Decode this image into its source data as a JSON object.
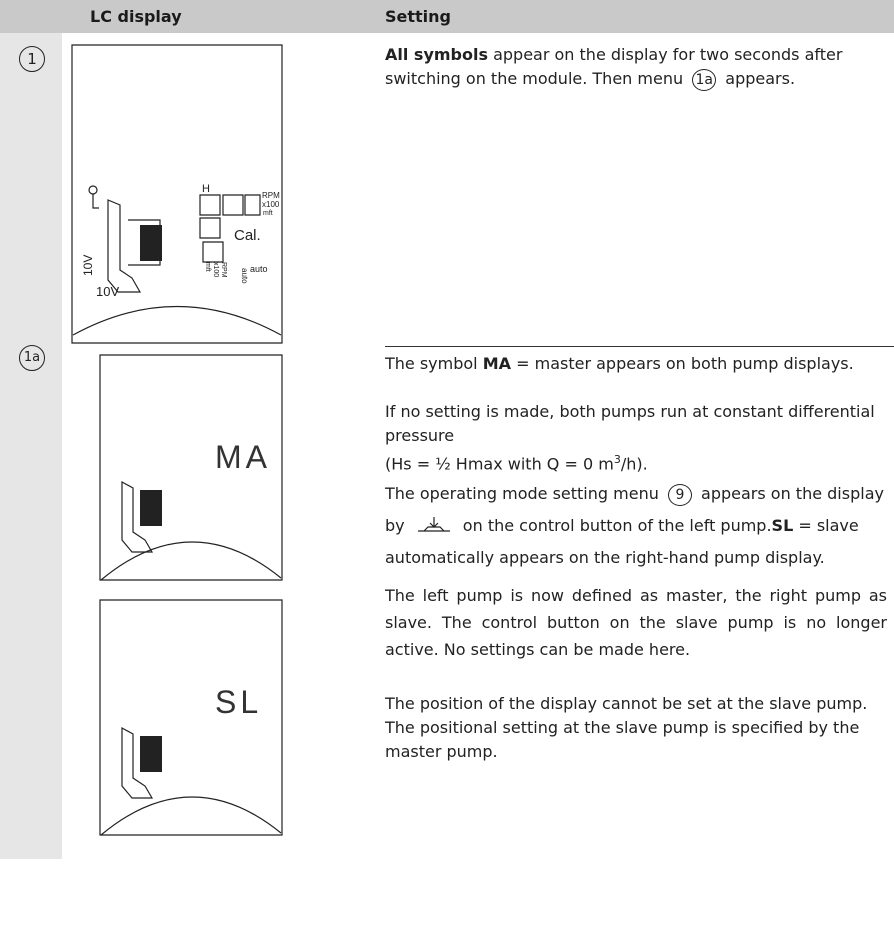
{
  "header": {
    "columns": [
      "LC display",
      "Setting"
    ]
  },
  "rows": [
    {
      "step": "1",
      "display_labels": [
        "H",
        "RPM",
        "x100",
        "mft",
        "Cal.",
        "auto",
        "10V",
        "RPM",
        "x100",
        "mft",
        "auto",
        "10V"
      ],
      "paragraphs": [
        [
          "All symbols",
          " appear on the display for two seconds after switching on the module. Then menu ",
          "1a",
          " appears."
        ]
      ]
    },
    {
      "step": "1a",
      "displays": [
        "MA",
        "SL"
      ],
      "paragraphs": [
        [
          "The symbol ",
          "MA",
          " = master appears on both pump displays."
        ],
        [
          "If no setting is made, both pumps run at constant differential pressure"
        ],
        [
          "(Hs = ½ Hmax with Q = 0 m",
          "3",
          "/h)."
        ],
        [
          "The operating mode setting menu ",
          "9",
          " appears on the display by ",
          " on the control button of the left pump.",
          "SL",
          " = slave automatically appears on the right-hand pump display."
        ],
        [
          "The left pump is now defined as master, the right pump as slave. The control button on the slave pump is no longer active. No settings can be made here."
        ],
        [
          "The position of the display cannot be set at the slave pump. The positional setting at the slave pump is specified by the master pump."
        ]
      ]
    }
  ]
}
